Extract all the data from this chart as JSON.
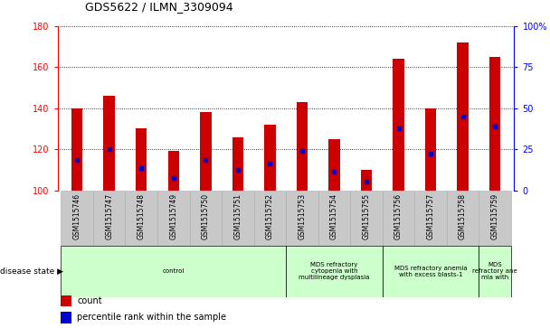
{
  "title": "GDS5622 / ILMN_3309094",
  "samples": [
    "GSM1515746",
    "GSM1515747",
    "GSM1515748",
    "GSM1515749",
    "GSM1515750",
    "GSM1515751",
    "GSM1515752",
    "GSM1515753",
    "GSM1515754",
    "GSM1515755",
    "GSM1515756",
    "GSM1515757",
    "GSM1515758",
    "GSM1515759"
  ],
  "counts": [
    140,
    146,
    130,
    119,
    138,
    126,
    132,
    143,
    125,
    110,
    164,
    140,
    172,
    165
  ],
  "percentile_rank_values": [
    115,
    120,
    111,
    106,
    115,
    110,
    113,
    119,
    109,
    104,
    130,
    118,
    136,
    131
  ],
  "ylim_left": [
    100,
    180
  ],
  "ylim_right": [
    0,
    100
  ],
  "yticks_left": [
    100,
    120,
    140,
    160,
    180
  ],
  "yticks_right": [
    0,
    25,
    50,
    75,
    100
  ],
  "bar_color": "#cc0000",
  "dot_color": "#0000cc",
  "bar_width": 0.35,
  "groups": [
    {
      "label": "control",
      "start": 0,
      "end": 7,
      "color": "#ccffcc"
    },
    {
      "label": "MDS refractory\ncytopenia with\nmultilineage dysplasia",
      "start": 7,
      "end": 10,
      "color": "#ccffcc"
    },
    {
      "label": "MDS refractory anemia\nwith excess blasts-1",
      "start": 10,
      "end": 13,
      "color": "#ccffcc"
    },
    {
      "label": "MDS\nrefractory ane\nmia with",
      "start": 13,
      "end": 14,
      "color": "#ccffcc"
    }
  ],
  "disease_state_label": "disease state",
  "legend_count_label": "count",
  "legend_percentile_label": "percentile rank within the sample",
  "background_color": "#ffffff",
  "tick_area_color": "#c8c8c8"
}
